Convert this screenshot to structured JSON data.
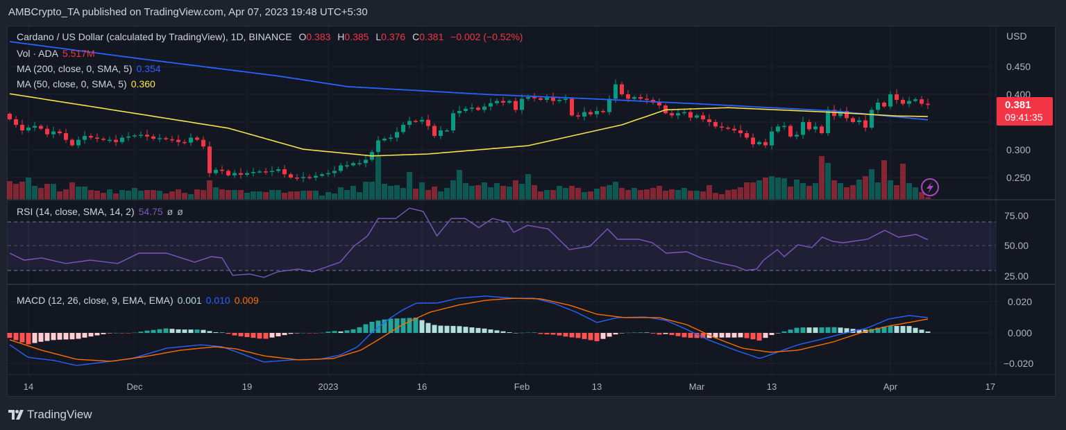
{
  "header": {
    "published": "AMBCrypto_TA published on TradingView.com, Apr 07, 2023 19:48 UTC+5:30"
  },
  "legend": {
    "symbol": "Cardano / US Dollar (calculated by TradingView), 1D, BINANCE",
    "o_label": "O",
    "o": "0.383",
    "h_label": "H",
    "h": "0.385",
    "l_label": "L",
    "l": "0.376",
    "c_label": "C",
    "c": "0.381",
    "change": "−0.002 (−0.52%)",
    "vol_label": "Vol · ADA",
    "vol_value": "5.517M",
    "ma200_label": "MA (200, close, 0, SMA, 5)",
    "ma200_value": "0.354",
    "ma50_label": "MA (50, close, 0, SMA, 5)",
    "ma50_value": "0.360",
    "rsi_label": "RSI (14, close, SMA, 14, 2)",
    "rsi_value": "54.75",
    "rsi_extra1": "ø",
    "rsi_extra2": "ø",
    "macd_label": "MACD (12, 26, close, 9, EMA, EMA)",
    "macd_hist": "0.001",
    "macd_value": "0.010",
    "macd_signal": "0.009"
  },
  "price_axis": {
    "currency": "USD",
    "ticks": [
      "0.450",
      "0.400",
      "0.300",
      "0.250"
    ]
  },
  "price_tag": {
    "price": "0.381",
    "countdown": "09:41:35"
  },
  "rsi_axis": {
    "ticks": [
      "75.00",
      "50.00",
      "25.00"
    ]
  },
  "macd_axis": {
    "ticks": [
      "0.020",
      "0.000",
      "−0.020"
    ]
  },
  "x_axis": {
    "labels": [
      "14",
      "Dec",
      "19",
      "2023",
      "16",
      "Feb",
      "13",
      "Mar",
      "13",
      "Apr",
      "17"
    ]
  },
  "footer": {
    "brand": "TradingView"
  },
  "colors": {
    "up": "#089981",
    "down": "#f23645",
    "ma200": "#2962ff",
    "ma50": "#f7e34a",
    "rsi": "#7e57c2",
    "macd": "#2962ff",
    "signal": "#ff6d00"
  },
  "chart_data": {
    "type": "candlestick",
    "title": "Cardano / US Dollar, 1D, BINANCE",
    "start_date": "2022-11-11",
    "end_date": "2023-04-07",
    "x_ticks": [
      {
        "label": "14",
        "i": 3
      },
      {
        "label": "Dec",
        "i": 20
      },
      {
        "label": "19",
        "i": 38
      },
      {
        "label": "2023",
        "i": 51
      },
      {
        "label": "16",
        "i": 66
      },
      {
        "label": "Feb",
        "i": 82
      },
      {
        "label": "13",
        "i": 94
      },
      {
        "label": "Mar",
        "i": 110
      },
      {
        "label": "13",
        "i": 122
      },
      {
        "label": "Apr",
        "i": 141
      },
      {
        "label": "17",
        "i": 157
      }
    ],
    "ylim": [
      0.22,
      0.5
    ],
    "first_open": 0.365,
    "close": [
      0.355,
      0.345,
      0.335,
      0.34,
      0.343,
      0.338,
      0.328,
      0.333,
      0.33,
      0.318,
      0.308,
      0.318,
      0.325,
      0.322,
      0.32,
      0.318,
      0.318,
      0.314,
      0.322,
      0.324,
      0.326,
      0.327,
      0.324,
      0.32,
      0.321,
      0.319,
      0.318,
      0.314,
      0.313,
      0.322,
      0.318,
      0.306,
      0.258,
      0.264,
      0.262,
      0.254,
      0.258,
      0.255,
      0.258,
      0.26,
      0.261,
      0.26,
      0.262,
      0.265,
      0.256,
      0.25,
      0.249,
      0.251,
      0.25,
      0.253,
      0.256,
      0.258,
      0.262,
      0.272,
      0.272,
      0.276,
      0.276,
      0.282,
      0.296,
      0.317,
      0.32,
      0.322,
      0.332,
      0.345,
      0.352,
      0.351,
      0.354,
      0.343,
      0.325,
      0.335,
      0.335,
      0.366,
      0.37,
      0.374,
      0.376,
      0.372,
      0.378,
      0.384,
      0.388,
      0.385,
      0.388,
      0.372,
      0.392,
      0.395,
      0.393,
      0.39,
      0.394,
      0.388,
      0.39,
      0.392,
      0.362,
      0.36,
      0.368,
      0.364,
      0.37,
      0.368,
      0.392,
      0.418,
      0.4,
      0.392,
      0.395,
      0.392,
      0.39,
      0.385,
      0.38,
      0.366,
      0.362,
      0.366,
      0.368,
      0.358,
      0.362,
      0.355,
      0.35,
      0.342,
      0.34,
      0.338,
      0.335,
      0.33,
      0.322,
      0.31,
      0.314,
      0.308,
      0.333,
      0.342,
      0.343,
      0.324,
      0.327,
      0.35,
      0.337,
      0.342,
      0.33,
      0.372,
      0.361,
      0.37,
      0.357,
      0.35,
      0.353,
      0.34,
      0.372,
      0.385,
      0.378,
      0.4,
      0.39,
      0.383,
      0.388,
      0.391,
      0.383,
      0.381
    ],
    "volume_m": [
      52,
      44,
      50,
      62,
      38,
      32,
      44,
      44,
      22,
      28,
      48,
      36,
      36,
      26,
      24,
      18,
      28,
      16,
      26,
      24,
      32,
      24,
      26,
      26,
      24,
      16,
      22,
      28,
      18,
      14,
      28,
      26,
      54,
      34,
      28,
      26,
      26,
      26,
      18,
      22,
      22,
      20,
      26,
      26,
      18,
      22,
      22,
      24,
      24,
      24,
      10,
      20,
      16,
      34,
      26,
      38,
      20,
      50,
      50,
      124,
      44,
      38,
      40,
      32,
      78,
      30,
      48,
      26,
      36,
      22,
      32,
      54,
      84,
      46,
      38,
      40,
      48,
      34,
      46,
      38,
      36,
      54,
      44,
      72,
      40,
      22,
      26,
      26,
      38,
      32,
      38,
      32,
      20,
      22,
      30,
      36,
      40,
      50,
      32,
      26,
      32,
      26,
      28,
      32,
      38,
      24,
      28,
      26,
      32,
      24,
      24,
      22,
      40,
      18,
      14,
      26,
      28,
      34,
      48,
      48,
      54,
      62,
      66,
      62,
      60,
      36,
      56,
      46,
      38,
      46,
      124,
      104,
      54,
      46,
      34,
      40,
      56,
      66,
      86,
      48,
      112,
      54,
      40,
      102,
      46,
      34,
      20,
      5.517
    ],
    "ma200": [
      [
        0,
        0.495
      ],
      [
        21,
        0.464
      ],
      [
        43,
        0.433
      ],
      [
        54,
        0.414
      ],
      [
        76,
        0.4
      ],
      [
        93,
        0.392
      ],
      [
        110,
        0.383
      ],
      [
        132,
        0.37
      ],
      [
        147,
        0.354
      ]
    ],
    "ma50": [
      [
        0,
        0.401
      ],
      [
        21,
        0.364
      ],
      [
        35,
        0.339
      ],
      [
        47,
        0.301
      ],
      [
        58,
        0.289
      ],
      [
        67,
        0.2925
      ],
      [
        83,
        0.3075
      ],
      [
        98,
        0.345
      ],
      [
        105,
        0.372
      ],
      [
        115,
        0.376
      ],
      [
        132,
        0.3675
      ],
      [
        142,
        0.361
      ],
      [
        147,
        0.36
      ]
    ],
    "rsi": {
      "ylim": [
        15,
        90
      ],
      "bands": [
        70,
        50,
        30
      ],
      "points": [
        [
          0,
          43.7
        ],
        [
          2.3,
          37.9
        ],
        [
          5.1,
          39.7
        ],
        [
          9,
          35.1
        ],
        [
          12.9,
          37.9
        ],
        [
          17.3,
          35.1
        ],
        [
          20.7,
          43.7
        ],
        [
          25.1,
          43.7
        ],
        [
          29.6,
          36.2
        ],
        [
          32.3,
          40.8
        ],
        [
          34,
          39.7
        ],
        [
          35.7,
          25.3
        ],
        [
          38.4,
          26.4
        ],
        [
          40.7,
          23.6
        ],
        [
          42.9,
          28.2
        ],
        [
          46.2,
          30.5
        ],
        [
          48.4,
          28.2
        ],
        [
          50.7,
          32.2
        ],
        [
          52.9,
          36.2
        ],
        [
          55.1,
          49.4
        ],
        [
          57.3,
          58.0
        ],
        [
          59,
          72.4
        ],
        [
          61.8,
          72.4
        ],
        [
          64,
          81.0
        ],
        [
          66.2,
          78.2
        ],
        [
          68.4,
          58.0
        ],
        [
          70.7,
          72.4
        ],
        [
          72.9,
          72.4
        ],
        [
          75.1,
          64.9
        ],
        [
          77.3,
          72.4
        ],
        [
          79.6,
          69.5
        ],
        [
          80.7,
          60.9
        ],
        [
          82.9,
          66.7
        ],
        [
          86.2,
          63.8
        ],
        [
          89.6,
          46.6
        ],
        [
          92.9,
          49.4
        ],
        [
          95.7,
          63.8
        ],
        [
          97.3,
          55.2
        ],
        [
          100.7,
          55.2
        ],
        [
          102.9,
          52.3
        ],
        [
          105.1,
          43.7
        ],
        [
          108.4,
          44.8
        ],
        [
          110.7,
          39.7
        ],
        [
          114,
          35.1
        ],
        [
          116.2,
          32.8
        ],
        [
          117.9,
          29.3
        ],
        [
          119.6,
          30.5
        ],
        [
          120.7,
          37.9
        ],
        [
          122.9,
          46.6
        ],
        [
          124,
          40.8
        ],
        [
          126.2,
          50.6
        ],
        [
          128.4,
          48.3
        ],
        [
          130.1,
          56.9
        ],
        [
          131.8,
          53.4
        ],
        [
          133.4,
          52.3
        ],
        [
          137.3,
          55.2
        ],
        [
          140.1,
          62.6
        ],
        [
          142.3,
          56.9
        ],
        [
          145.1,
          59.2
        ],
        [
          147,
          54.75
        ]
      ]
    },
    "macd": {
      "ylim": [
        -0.027,
        0.025
      ],
      "macd": [
        [
          0,
          -0.0076
        ],
        [
          2.9,
          -0.0156
        ],
        [
          7.3,
          -0.0178
        ],
        [
          10.7,
          -0.0209
        ],
        [
          15.1,
          -0.0187
        ],
        [
          19.6,
          -0.0164
        ],
        [
          25.1,
          -0.0098
        ],
        [
          30.7,
          -0.0076
        ],
        [
          34,
          -0.0089
        ],
        [
          36.2,
          -0.012
        ],
        [
          40.7,
          -0.0187
        ],
        [
          45.1,
          -0.0173
        ],
        [
          49.6,
          -0.0169
        ],
        [
          52.9,
          -0.0142
        ],
        [
          55.7,
          -0.0089
        ],
        [
          57.9,
          0
        ],
        [
          60.7,
          0.0089
        ],
        [
          62.9,
          0.0147
        ],
        [
          65.1,
          0.0191
        ],
        [
          68.4,
          0.0191
        ],
        [
          71.8,
          0.0222
        ],
        [
          76.2,
          0.0236
        ],
        [
          80.7,
          0.0222
        ],
        [
          84,
          0.0222
        ],
        [
          87.3,
          0.0187
        ],
        [
          90.7,
          0.0133
        ],
        [
          94,
          0.0067
        ],
        [
          97.3,
          0.0098
        ],
        [
          101.8,
          0.0102
        ],
        [
          105.1,
          0.008
        ],
        [
          108.4,
          0.0022
        ],
        [
          111.8,
          -0.0044
        ],
        [
          116.2,
          -0.0111
        ],
        [
          120.1,
          -0.0164
        ],
        [
          122.9,
          -0.0124
        ],
        [
          126.2,
          -0.0076
        ],
        [
          129.6,
          -0.0044
        ],
        [
          132.9,
          -0.0009
        ],
        [
          137.3,
          0.0031
        ],
        [
          140.7,
          0.0089
        ],
        [
          144,
          0.0111
        ],
        [
          147,
          0.0098
        ]
      ],
      "signal": [
        [
          0,
          -0.0044
        ],
        [
          5.1,
          -0.0111
        ],
        [
          10.7,
          -0.0169
        ],
        [
          16.2,
          -0.0182
        ],
        [
          21.8,
          -0.0151
        ],
        [
          27.3,
          -0.0111
        ],
        [
          32.9,
          -0.0089
        ],
        [
          36.2,
          -0.0102
        ],
        [
          40.7,
          -0.0147
        ],
        [
          46.2,
          -0.0173
        ],
        [
          51.8,
          -0.0164
        ],
        [
          56.2,
          -0.0111
        ],
        [
          59,
          -0.0044
        ],
        [
          62.9,
          0.0053
        ],
        [
          67.3,
          0.0133
        ],
        [
          71.8,
          0.0178
        ],
        [
          76.2,
          0.0209
        ],
        [
          80.7,
          0.0222
        ],
        [
          85.1,
          0.0218
        ],
        [
          89.6,
          0.0178
        ],
        [
          94,
          0.012
        ],
        [
          98.4,
          0.0098
        ],
        [
          104,
          0.0098
        ],
        [
          108.4,
          0.0053
        ],
        [
          112.9,
          -0.0031
        ],
        [
          117.3,
          -0.0098
        ],
        [
          121.8,
          -0.0124
        ],
        [
          126.2,
          -0.0111
        ],
        [
          131.8,
          -0.0058
        ],
        [
          136.2,
          0
        ],
        [
          140.7,
          0.0044
        ],
        [
          144,
          0.0067
        ],
        [
          147,
          0.0089
        ]
      ]
    }
  }
}
